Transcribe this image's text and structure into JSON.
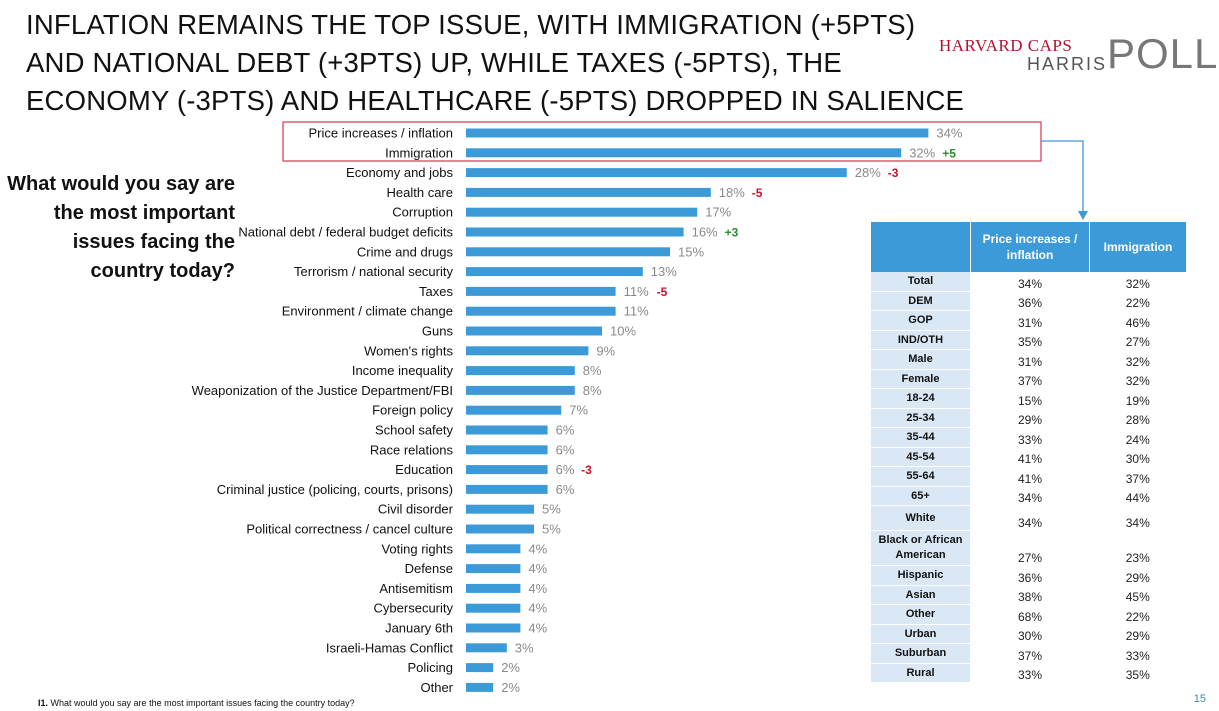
{
  "headline": [
    "INFLATION REMAINS THE TOP ISSUE, WITH IMMIGRATION (+5PTS)",
    "AND NATIONAL DEBT (+3PTS) UP, WHILE TAXES (-5PTS), THE",
    "ECONOMY (-3PTS) AND HEALTHCARE (-5PTS) DROPPED IN SALIENCE"
  ],
  "logo": {
    "line1": "HARVARD CAPS",
    "line2": "HARRIS",
    "line3": "POLL"
  },
  "question": "What would you say are the most important issues facing the country today?",
  "footnote": {
    "code": "I1.",
    "text": " What would you say are the most important issues facing the country today?"
  },
  "page_number": "15",
  "colors": {
    "bar": "#3d9ad8",
    "positive": "#2e8b2e",
    "negative": "#c8102e",
    "highlight_box": "#d9455a",
    "value_text": "#8a8a8a"
  },
  "chart_data": {
    "type": "bar",
    "orientation": "horizontal",
    "unit": "%",
    "categories": [
      "Price increases / inflation",
      "Immigration",
      "Economy and jobs",
      "Health care",
      "Corruption",
      "National debt / federal budget deficits",
      "Crime and drugs",
      "Terrorism / national security",
      "Taxes",
      "Environment / climate change",
      "Guns",
      "Women's rights",
      "Income inequality",
      "Weaponization of the Justice Department/FBI",
      "Foreign policy",
      "School safety",
      "Race relations",
      "Education",
      "Criminal justice (policing, courts, prisons)",
      "Civil disorder",
      "Political correctness / cancel culture",
      "Voting rights",
      "Defense",
      "Antisemitism",
      "Cybersecurity",
      "January 6th",
      "Israeli-Hamas Conflict",
      "Policing",
      "Other"
    ],
    "values": [
      34,
      32,
      28,
      18,
      17,
      16,
      15,
      13,
      11,
      11,
      10,
      9,
      8,
      8,
      7,
      6,
      6,
      6,
      6,
      5,
      5,
      4,
      4,
      4,
      4,
      4,
      3,
      2,
      2
    ],
    "changes": [
      "",
      "+5",
      "-3",
      "-5",
      "",
      "+3",
      "",
      "",
      "-5",
      "",
      "",
      "",
      "",
      "",
      "",
      "",
      "",
      "-3",
      "",
      "",
      "",
      "",
      "",
      "",
      "",
      "",
      "",
      "",
      ""
    ],
    "highlighted": [
      "Price increases / inflation",
      "Immigration"
    ]
  },
  "crosstab": {
    "headers": [
      "Price increases / inflation",
      "Immigration"
    ],
    "rows": [
      {
        "label": "Total",
        "values": [
          "34%",
          "32%"
        ]
      },
      {
        "label": "DEM",
        "values": [
          "36%",
          "22%"
        ]
      },
      {
        "label": "GOP",
        "values": [
          "31%",
          "46%"
        ]
      },
      {
        "label": "IND/OTH",
        "values": [
          "35%",
          "27%"
        ]
      },
      {
        "label": "Male",
        "values": [
          "31%",
          "32%"
        ]
      },
      {
        "label": "Female",
        "values": [
          "37%",
          "32%"
        ]
      },
      {
        "label": "18-24",
        "values": [
          "15%",
          "19%"
        ]
      },
      {
        "label": "25-34",
        "values": [
          "29%",
          "28%"
        ]
      },
      {
        "label": "35-44",
        "values": [
          "33%",
          "24%"
        ]
      },
      {
        "label": "45-54",
        "values": [
          "41%",
          "30%"
        ]
      },
      {
        "label": "55-64",
        "values": [
          "41%",
          "37%"
        ]
      },
      {
        "label": "65+",
        "values": [
          "34%",
          "44%"
        ]
      },
      {
        "label": "White",
        "values": [
          "34%",
          "34%"
        ]
      },
      {
        "label": "Black or African American",
        "values": [
          "27%",
          "23%"
        ]
      },
      {
        "label": "Hispanic",
        "values": [
          "36%",
          "29%"
        ]
      },
      {
        "label": "Asian",
        "values": [
          "38%",
          "45%"
        ]
      },
      {
        "label": "Other",
        "values": [
          "68%",
          "22%"
        ]
      },
      {
        "label": "Urban",
        "values": [
          "30%",
          "29%"
        ]
      },
      {
        "label": "Suburban",
        "values": [
          "37%",
          "33%"
        ]
      },
      {
        "label": "Rural",
        "values": [
          "33%",
          "35%"
        ]
      }
    ]
  }
}
